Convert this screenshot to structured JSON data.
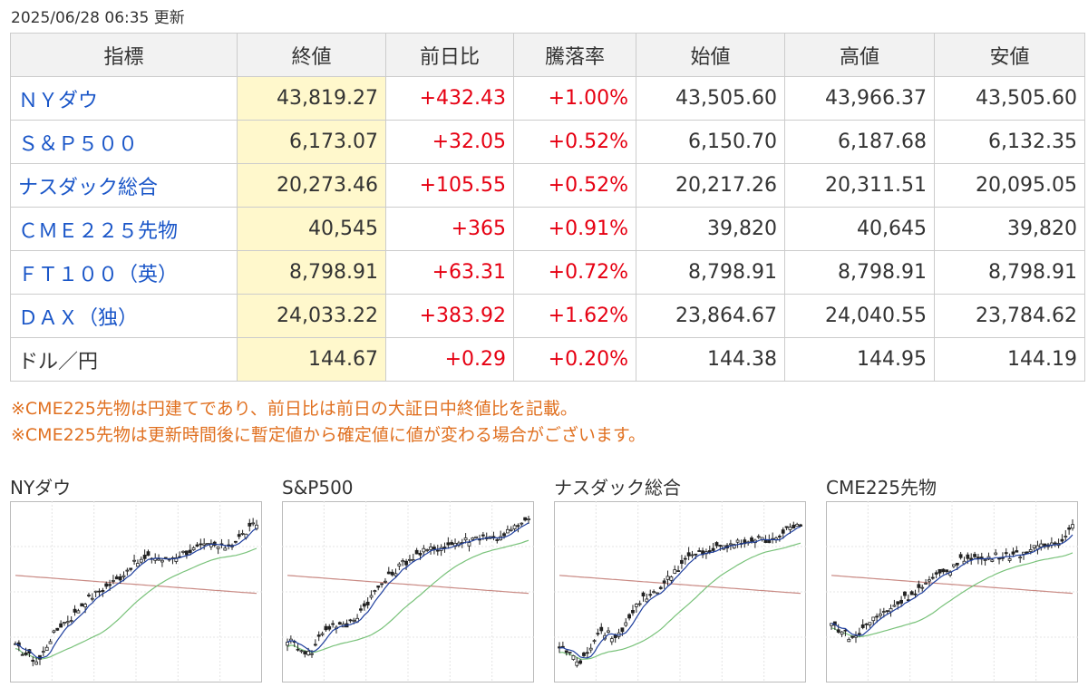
{
  "updated": "2025/06/28 06:35 更新",
  "headers": [
    "指標",
    "終値",
    "前日比",
    "騰落率",
    "始値",
    "高値",
    "安値"
  ],
  "rows": [
    {
      "name": "ＮＹダウ",
      "close": "43,819.27",
      "change": "+432.43",
      "pct": "+1.00%",
      "open": "43,505.60",
      "high": "43,966.37",
      "low": "43,505.60",
      "link": true
    },
    {
      "name": "Ｓ＆Ｐ５００",
      "close": "6,173.07",
      "change": "+32.05",
      "pct": "+0.52%",
      "open": "6,150.70",
      "high": "6,187.68",
      "low": "6,132.35",
      "link": true
    },
    {
      "name": "ナスダック総合",
      "close": "20,273.46",
      "change": "+105.55",
      "pct": "+0.52%",
      "open": "20,217.26",
      "high": "20,311.51",
      "low": "20,095.05",
      "link": true
    },
    {
      "name": "ＣＭＥ２２５先物",
      "close": "40,545",
      "change": "+365",
      "pct": "+0.91%",
      "open": "39,820",
      "high": "40,645",
      "low": "39,820",
      "link": true
    },
    {
      "name": "ＦＴ１００（英）",
      "close": "8,798.91",
      "change": "+63.31",
      "pct": "+0.72%",
      "open": "8,798.91",
      "high": "8,798.91",
      "low": "8,798.91",
      "link": true
    },
    {
      "name": "ＤＡＸ（独）",
      "close": "24,033.22",
      "change": "+383.92",
      "pct": "+1.62%",
      "open": "23,864.67",
      "high": "24,040.55",
      "low": "23,784.62",
      "link": true
    },
    {
      "name": "ドル／円",
      "close": "144.67",
      "change": "+0.29",
      "pct": "+0.20%",
      "open": "144.38",
      "high": "144.95",
      "low": "144.19",
      "link": false
    }
  ],
  "notes": [
    "※CME225先物は円建てであり、前日比は前日の大証日中終値比を記載。",
    "※CME225先物は更新時間後に暫定値から確定値に値が変わる場合がございます。"
  ],
  "colors": {
    "up": "#e60012",
    "link": "#1a56c8",
    "note": "#e07020",
    "close_bg": "#fff8cc",
    "ma_short": "#1f3f9e",
    "ma_mid": "#79c27a",
    "ma_long": "#c98a84"
  },
  "charts": [
    {
      "title": "NYダウ",
      "profile": [
        0.15,
        0.1,
        0.05,
        0.2,
        0.3,
        0.35,
        0.45,
        0.5,
        0.55,
        0.6,
        0.68,
        0.72,
        0.74,
        0.72,
        0.75,
        0.78,
        0.8,
        0.82,
        0.8,
        0.84,
        0.9,
        0.96
      ]
    },
    {
      "title": "S&P500",
      "profile": [
        0.2,
        0.15,
        0.1,
        0.25,
        0.3,
        0.28,
        0.35,
        0.45,
        0.55,
        0.62,
        0.7,
        0.74,
        0.78,
        0.8,
        0.82,
        0.84,
        0.86,
        0.88,
        0.86,
        0.9,
        0.94,
        0.98
      ]
    },
    {
      "title": "ナスダック総合",
      "profile": [
        0.15,
        0.1,
        0.05,
        0.2,
        0.25,
        0.2,
        0.35,
        0.45,
        0.5,
        0.55,
        0.65,
        0.72,
        0.76,
        0.78,
        0.8,
        0.82,
        0.84,
        0.86,
        0.85,
        0.88,
        0.92,
        0.96
      ]
    },
    {
      "title": "CME225先物",
      "profile": [
        0.3,
        0.25,
        0.2,
        0.3,
        0.35,
        0.4,
        0.45,
        0.5,
        0.55,
        0.6,
        0.65,
        0.7,
        0.75,
        0.72,
        0.74,
        0.76,
        0.75,
        0.78,
        0.8,
        0.82,
        0.86,
        0.95
      ]
    }
  ]
}
